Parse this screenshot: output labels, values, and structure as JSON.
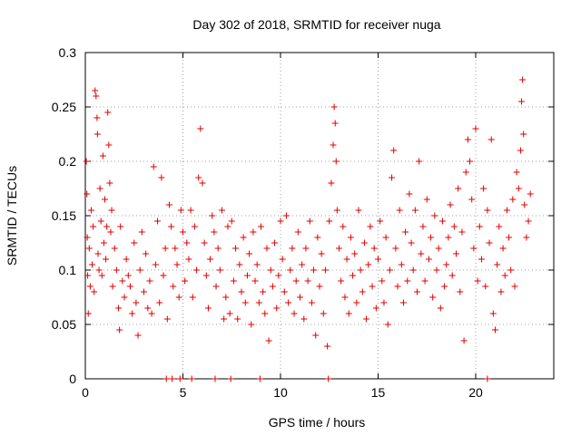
{
  "chart_data": {
    "type": "scatter",
    "title": "Day 302 of 2018, SRMTID for receiver nuga",
    "xlabel": "GPS time / hours",
    "ylabel": "SRMTID / TECUs",
    "xlim": [
      0,
      24
    ],
    "ylim": [
      0,
      0.3
    ],
    "xticks": [
      {
        "value": 0,
        "label": "0"
      },
      {
        "value": 5,
        "label": "5"
      },
      {
        "value": 10,
        "label": "10"
      },
      {
        "value": 15,
        "label": "15"
      },
      {
        "value": 20,
        "label": "20"
      }
    ],
    "yticks": [
      {
        "value": 0,
        "label": "0"
      },
      {
        "value": 0.05,
        "label": "0.05"
      },
      {
        "value": 0.1,
        "label": "0.1"
      },
      {
        "value": 0.15,
        "label": "0.15"
      },
      {
        "value": 0.2,
        "label": "0.2"
      },
      {
        "value": 0.25,
        "label": "0.25"
      },
      {
        "value": 0.3,
        "label": "0.3"
      }
    ],
    "grid": true,
    "marker": "+",
    "marker_color": "#e00000",
    "series": [
      {
        "name": "SRMTID",
        "points": [
          [
            0.05,
            0.2
          ],
          [
            0.08,
            0.17
          ],
          [
            0.1,
            0.13
          ],
          [
            0.12,
            0.095
          ],
          [
            0.15,
            0.06
          ],
          [
            0.2,
            0.12
          ],
          [
            0.25,
            0.085
          ],
          [
            0.3,
            0.155
          ],
          [
            0.35,
            0.105
          ],
          [
            0.4,
            0.14
          ],
          [
            0.45,
            0.08
          ],
          [
            0.5,
            0.265
          ],
          [
            0.55,
            0.26
          ],
          [
            0.6,
            0.24
          ],
          [
            0.62,
            0.225
          ],
          [
            0.65,
            0.115
          ],
          [
            0.7,
            0.1
          ],
          [
            0.75,
            0.175
          ],
          [
            0.8,
            0.145
          ],
          [
            0.85,
            0.095
          ],
          [
            0.9,
            0.205
          ],
          [
            0.95,
            0.125
          ],
          [
            1.0,
            0.165
          ],
          [
            1.05,
            0.11
          ],
          [
            1.1,
            0.14
          ],
          [
            1.15,
            0.245
          ],
          [
            1.2,
            0.215
          ],
          [
            1.25,
            0.18
          ],
          [
            1.3,
            0.135
          ],
          [
            1.35,
            0.155
          ],
          [
            1.4,
            0.085
          ],
          [
            1.5,
            0.12
          ],
          [
            1.6,
            0.1
          ],
          [
            1.7,
            0.065
          ],
          [
            1.75,
            0.045
          ],
          [
            1.8,
            0.14
          ],
          [
            1.9,
            0.09
          ],
          [
            2.0,
            0.075
          ],
          [
            2.1,
            0.11
          ],
          [
            2.2,
            0.095
          ],
          [
            2.3,
            0.085
          ],
          [
            2.4,
            0.06
          ],
          [
            2.5,
            0.125
          ],
          [
            2.6,
            0.07
          ],
          [
            2.7,
            0.04
          ],
          [
            2.8,
            0.1
          ],
          [
            2.9,
            0.135
          ],
          [
            3.0,
            0.08
          ],
          [
            3.1,
            0.115
          ],
          [
            3.2,
            0.065
          ],
          [
            3.3,
            0.09
          ],
          [
            3.4,
            0.06
          ],
          [
            3.5,
            0.195
          ],
          [
            3.6,
            0.105
          ],
          [
            3.7,
            0.145
          ],
          [
            3.8,
            0.07
          ],
          [
            3.9,
            0.185
          ],
          [
            4.0,
            0.095
          ],
          [
            4.1,
            0.12
          ],
          [
            4.2,
            0.055
          ],
          [
            4.3,
            0.16
          ],
          [
            4.4,
            0.14
          ],
          [
            4.5,
            0.085
          ],
          [
            4.6,
            0.12
          ],
          [
            4.7,
            0.105
          ],
          [
            4.8,
            0.075
          ],
          [
            4.9,
            0.155
          ],
          [
            5.0,
            0.135
          ],
          [
            5.1,
            0.09
          ],
          [
            5.2,
            0.125
          ],
          [
            5.3,
            0.11
          ],
          [
            5.4,
            0.155
          ],
          [
            5.5,
            0.075
          ],
          [
            5.6,
            0.14
          ],
          [
            5.7,
            0.1
          ],
          [
            5.8,
            0.185
          ],
          [
            5.9,
            0.23
          ],
          [
            6.0,
            0.18
          ],
          [
            6.1,
            0.125
          ],
          [
            6.2,
            0.095
          ],
          [
            6.3,
            0.065
          ],
          [
            6.4,
            0.11
          ],
          [
            6.5,
            0.15
          ],
          [
            6.6,
            0.135
          ],
          [
            6.7,
            0.085
          ],
          [
            6.8,
            0.12
          ],
          [
            6.9,
            0.1
          ],
          [
            7.0,
            0.155
          ],
          [
            7.1,
            0.055
          ],
          [
            7.2,
            0.075
          ],
          [
            7.3,
            0.14
          ],
          [
            7.4,
            0.06
          ],
          [
            7.5,
            0.145
          ],
          [
            7.6,
            0.09
          ],
          [
            7.7,
            0.12
          ],
          [
            7.8,
            0.055
          ],
          [
            7.9,
            0.105
          ],
          [
            8.0,
            0.08
          ],
          [
            8.1,
            0.13
          ],
          [
            8.2,
            0.07
          ],
          [
            8.3,
            0.095
          ],
          [
            8.4,
            0.115
          ],
          [
            8.5,
            0.05
          ],
          [
            8.6,
            0.135
          ],
          [
            8.7,
            0.09
          ],
          [
            8.8,
            0.105
          ],
          [
            8.9,
            0.07
          ],
          [
            9.0,
            0.14
          ],
          [
            9.1,
            0.08
          ],
          [
            9.2,
            0.06
          ],
          [
            9.3,
            0.12
          ],
          [
            9.4,
            0.035
          ],
          [
            9.5,
            0.1
          ],
          [
            9.6,
            0.085
          ],
          [
            9.7,
            0.125
          ],
          [
            9.8,
            0.065
          ],
          [
            9.9,
            0.095
          ],
          [
            10.0,
            0.145
          ],
          [
            10.1,
            0.11
          ],
          [
            10.2,
            0.08
          ],
          [
            10.3,
            0.15
          ],
          [
            10.4,
            0.07
          ],
          [
            10.5,
            0.1
          ],
          [
            10.6,
            0.12
          ],
          [
            10.7,
            0.06
          ],
          [
            10.8,
            0.09
          ],
          [
            10.9,
            0.135
          ],
          [
            11.0,
            0.075
          ],
          [
            11.1,
            0.105
          ],
          [
            11.2,
            0.055
          ],
          [
            11.3,
            0.12
          ],
          [
            11.4,
            0.09
          ],
          [
            11.5,
            0.145
          ],
          [
            11.6,
            0.07
          ],
          [
            11.7,
            0.1
          ],
          [
            11.8,
            0.04
          ],
          [
            11.9,
            0.13
          ],
          [
            12.0,
            0.085
          ],
          [
            12.1,
            0.115
          ],
          [
            12.2,
            0.06
          ],
          [
            12.3,
            0.1
          ],
          [
            12.4,
            0.03
          ],
          [
            12.5,
            0.145
          ],
          [
            12.6,
            0.18
          ],
          [
            12.7,
            0.215
          ],
          [
            12.75,
            0.25
          ],
          [
            12.8,
            0.235
          ],
          [
            12.85,
            0.2
          ],
          [
            12.9,
            0.155
          ],
          [
            13.0,
            0.12
          ],
          [
            13.1,
            0.09
          ],
          [
            13.2,
            0.14
          ],
          [
            13.3,
            0.075
          ],
          [
            13.4,
            0.11
          ],
          [
            13.5,
            0.06
          ],
          [
            13.6,
            0.13
          ],
          [
            13.7,
            0.095
          ],
          [
            13.8,
            0.115
          ],
          [
            13.9,
            0.07
          ],
          [
            14.0,
            0.155
          ],
          [
            14.1,
            0.1
          ],
          [
            14.2,
            0.08
          ],
          [
            14.3,
            0.125
          ],
          [
            14.4,
            0.055
          ],
          [
            14.5,
            0.105
          ],
          [
            14.6,
            0.14
          ],
          [
            14.7,
            0.085
          ],
          [
            14.8,
            0.12
          ],
          [
            14.9,
            0.065
          ],
          [
            15.0,
            0.11
          ],
          [
            15.1,
            0.145
          ],
          [
            15.2,
            0.09
          ],
          [
            15.3,
            0.07
          ],
          [
            15.4,
            0.13
          ],
          [
            15.5,
            0.05
          ],
          [
            15.6,
            0.1
          ],
          [
            15.7,
            0.185
          ],
          [
            15.8,
            0.21
          ],
          [
            15.9,
            0.12
          ],
          [
            16.0,
            0.085
          ],
          [
            16.1,
            0.155
          ],
          [
            16.2,
            0.105
          ],
          [
            16.3,
            0.07
          ],
          [
            16.4,
            0.135
          ],
          [
            16.5,
            0.09
          ],
          [
            16.6,
            0.17
          ],
          [
            16.7,
            0.125
          ],
          [
            16.8,
            0.1
          ],
          [
            16.9,
            0.155
          ],
          [
            17.0,
            0.08
          ],
          [
            17.1,
            0.2
          ],
          [
            17.2,
            0.115
          ],
          [
            17.3,
            0.14
          ],
          [
            17.4,
            0.09
          ],
          [
            17.5,
            0.165
          ],
          [
            17.6,
            0.11
          ],
          [
            17.7,
            0.13
          ],
          [
            17.8,
            0.075
          ],
          [
            17.9,
            0.15
          ],
          [
            18.0,
            0.1
          ],
          [
            18.1,
            0.12
          ],
          [
            18.2,
            0.065
          ],
          [
            18.3,
            0.145
          ],
          [
            18.4,
            0.085
          ],
          [
            18.5,
            0.105
          ],
          [
            18.6,
            0.13
          ],
          [
            18.7,
            0.16
          ],
          [
            18.8,
            0.095
          ],
          [
            18.9,
            0.14
          ],
          [
            19.0,
            0.115
          ],
          [
            19.1,
            0.175
          ],
          [
            19.2,
            0.08
          ],
          [
            19.3,
            0.135
          ],
          [
            19.4,
            0.035
          ],
          [
            19.5,
            0.19
          ],
          [
            19.6,
            0.22
          ],
          [
            19.7,
            0.2
          ],
          [
            19.8,
            0.165
          ],
          [
            19.9,
            0.12
          ],
          [
            20.0,
            0.23
          ],
          [
            20.1,
            0.09
          ],
          [
            20.2,
            0.14
          ],
          [
            20.3,
            0.11
          ],
          [
            20.4,
            0.175
          ],
          [
            20.5,
            0.085
          ],
          [
            20.6,
            0.155
          ],
          [
            20.7,
            0.125
          ],
          [
            20.8,
            0.22
          ],
          [
            20.9,
            0.06
          ],
          [
            21.0,
            0.045
          ],
          [
            21.1,
            0.105
          ],
          [
            21.2,
            0.14
          ],
          [
            21.3,
            0.08
          ],
          [
            21.4,
            0.12
          ],
          [
            21.5,
            0.095
          ],
          [
            21.6,
            0.155
          ],
          [
            21.7,
            0.13
          ],
          [
            21.8,
            0.1
          ],
          [
            21.9,
            0.165
          ],
          [
            22.0,
            0.085
          ],
          [
            22.1,
            0.19
          ],
          [
            22.2,
            0.175
          ],
          [
            22.3,
            0.21
          ],
          [
            22.35,
            0.255
          ],
          [
            22.4,
            0.275
          ],
          [
            22.45,
            0.225
          ],
          [
            22.5,
            0.16
          ],
          [
            22.6,
            0.13
          ],
          [
            22.7,
            0.145
          ],
          [
            22.8,
            0.17
          ],
          [
            4.15,
            0
          ],
          [
            4.45,
            0
          ],
          [
            4.85,
            0
          ],
          [
            5.45,
            0
          ],
          [
            6.65,
            0
          ],
          [
            7.45,
            0
          ],
          [
            8.95,
            0
          ],
          [
            12.45,
            0
          ],
          [
            20.6,
            0
          ]
        ]
      }
    ]
  }
}
